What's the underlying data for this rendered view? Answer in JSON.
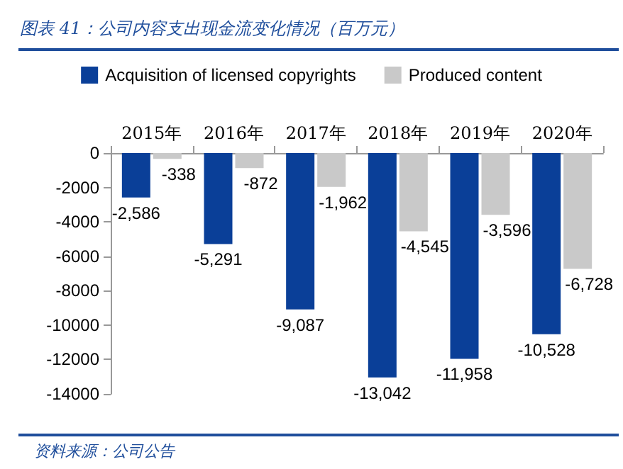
{
  "chart_data": {
    "type": "bar",
    "title": "图表 41：公司内容支出现金流变化情况（百万元）",
    "categories": [
      "2015年",
      "2016年",
      "2017年",
      "2018年",
      "2019年",
      "2020年"
    ],
    "series": [
      {
        "name": "Acquisition of licensed copyrights",
        "color": "#0a3f98",
        "values": [
          -2586,
          -5291,
          -9087,
          -13042,
          -11958,
          -10528
        ],
        "value_labels": [
          "-2,586",
          "-5,291",
          "-9,087",
          "-13,042",
          "-11,958",
          "-10,528"
        ]
      },
      {
        "name": "Produced content",
        "color": "#c9c9c9",
        "values": [
          -338,
          -872,
          -1962,
          -4545,
          -3596,
          -6728
        ],
        "value_labels": [
          "-338",
          "-872",
          "-1,962",
          "-4,545",
          "-3,596",
          "-6,728"
        ]
      }
    ],
    "ylim": [
      -14000,
      0
    ],
    "yticks": [
      -14000,
      -12000,
      -10000,
      -8000,
      -6000,
      -4000,
      -2000,
      0
    ],
    "grid": false,
    "legend": "top",
    "annotations": [
      "资料来源：公司公告"
    ]
  }
}
